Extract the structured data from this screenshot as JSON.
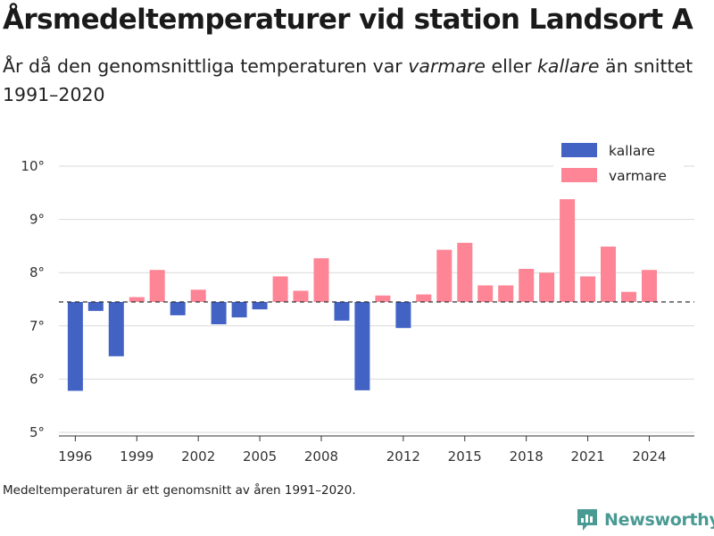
{
  "header": {
    "title": "Årsmedeltemperaturer vid station Landsort A",
    "subtitle_part1": "År då den genomsnittliga temperaturen var ",
    "subtitle_warm": "varmare",
    "subtitle_part2": " eller ",
    "subtitle_cold": "kallare",
    "subtitle_part3": " än snittet 1991–2020"
  },
  "footer": {
    "note": "Medeltemperaturen är ett genomsnitt av åren 1991–2020.",
    "brand": "Newsworthy"
  },
  "colors": {
    "kallare": "#4263c4",
    "varmare": "#fd8595",
    "brand": "#4a9a94"
  },
  "chart_data": {
    "type": "bar",
    "title": "Årsmedeltemperaturer vid station Landsort A",
    "baseline": 7.45,
    "ylim": [
      5,
      10.2
    ],
    "xlim": [
      1995.2,
      2026.2
    ],
    "y_ticks": [
      5,
      6,
      7,
      8,
      9,
      10
    ],
    "y_tick_suffix": "°",
    "x_ticks": [
      1996,
      1999,
      2002,
      2005,
      2008,
      2012,
      2015,
      2018,
      2021,
      2024
    ],
    "grid": true,
    "legend_position": "top-right",
    "series": [
      {
        "name": "kallare",
        "color": "#4263c4"
      },
      {
        "name": "varmare",
        "color": "#fd8595"
      }
    ],
    "years": [
      1996,
      1997,
      1998,
      1999,
      2000,
      2001,
      2002,
      2003,
      2004,
      2005,
      2006,
      2007,
      2008,
      2009,
      2010,
      2011,
      2012,
      2013,
      2014,
      2015,
      2016,
      2017,
      2018,
      2019,
      2020,
      2021,
      2022,
      2023,
      2024
    ],
    "values": [
      5.78,
      7.28,
      6.43,
      7.54,
      8.05,
      7.2,
      7.68,
      7.03,
      7.16,
      7.31,
      7.93,
      7.66,
      8.27,
      7.1,
      5.79,
      7.57,
      6.96,
      7.59,
      8.43,
      8.56,
      7.76,
      7.76,
      8.07,
      8.0,
      9.38,
      7.93,
      8.49,
      7.64,
      8.05
    ]
  }
}
